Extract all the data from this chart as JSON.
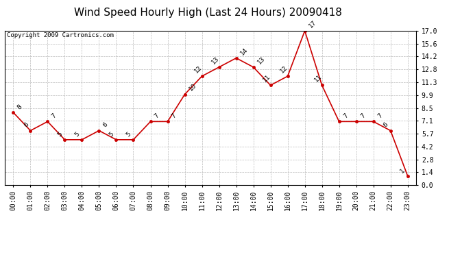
{
  "title": "Wind Speed Hourly High (Last 24 Hours) 20090418",
  "copyright": "Copyright 2009 Cartronics.com",
  "hours": [
    0,
    1,
    2,
    3,
    4,
    5,
    6,
    7,
    8,
    9,
    10,
    11,
    12,
    13,
    14,
    15,
    16,
    17,
    18,
    19,
    20,
    21,
    22,
    23
  ],
  "values": [
    8,
    6,
    7,
    5,
    5,
    6,
    5,
    5,
    7,
    7,
    10,
    12,
    13,
    14,
    13,
    11,
    12,
    17,
    11,
    7,
    7,
    7,
    6,
    1
  ],
  "xlabels": [
    "00:00",
    "01:00",
    "02:00",
    "03:00",
    "04:00",
    "05:00",
    "06:00",
    "07:00",
    "08:00",
    "09:00",
    "10:00",
    "11:00",
    "12:00",
    "13:00",
    "14:00",
    "15:00",
    "16:00",
    "17:00",
    "18:00",
    "19:00",
    "20:00",
    "21:00",
    "22:00",
    "23:00"
  ],
  "ylim": [
    0.0,
    17.0
  ],
  "yticks": [
    0.0,
    1.4,
    2.8,
    4.2,
    5.7,
    7.1,
    8.5,
    9.9,
    11.3,
    12.8,
    14.2,
    15.6,
    17.0
  ],
  "line_color": "#cc0000",
  "marker_color": "#cc0000",
  "bg_color": "#ffffff",
  "grid_color": "#bbbbbb",
  "title_fontsize": 11,
  "tick_fontsize": 7,
  "copyright_fontsize": 6.5,
  "annotation_fontsize": 6.5
}
